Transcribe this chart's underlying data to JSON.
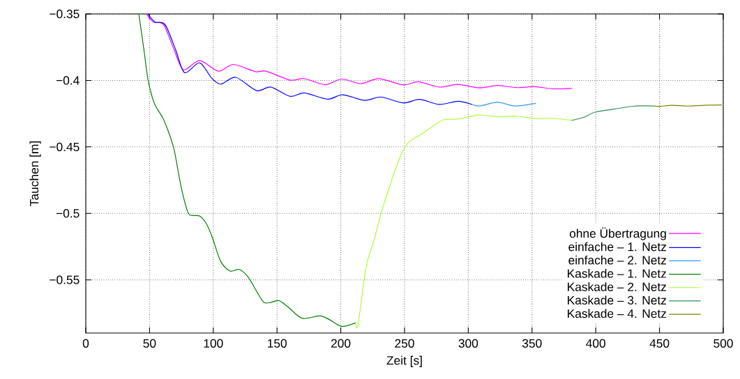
{
  "chart_data": {
    "type": "line",
    "xlabel": "Zeit [s]",
    "ylabel": "Tauchen [m]",
    "xlim": [
      0,
      500
    ],
    "ylim": [
      -0.59,
      -0.35
    ],
    "xticks": [
      0,
      50,
      100,
      150,
      200,
      250,
      300,
      350,
      400,
      450,
      500
    ],
    "yticks": [
      {
        "value": -0.55,
        "label": "−0.55"
      },
      {
        "value": -0.5,
        "label": "−0.5"
      },
      {
        "value": -0.45,
        "label": "−0.45"
      },
      {
        "value": -0.4,
        "label": "−0.4"
      },
      {
        "value": -0.35,
        "label": "−0.35"
      }
    ],
    "grid": true,
    "legend": "bottom right",
    "line_style": "solid",
    "marker": "none",
    "series": [
      {
        "name": "ohne Übertragung",
        "color": "#ff00ff",
        "x": [
          47.4,
          52.9,
          58.4,
          62,
          69.3,
          76.6,
          89.3,
          104,
          115.8,
          133,
          141.3,
          160.4,
          171.4,
          187.8,
          200.6,
          216,
          229.8,
          249,
          261,
          277.3,
          292,
          308.4,
          323,
          337.5,
          352,
          366.7,
          381.3
        ],
        "values": [
          -0.35,
          -0.356,
          -0.3565,
          -0.3595,
          -0.377,
          -0.392,
          -0.385,
          -0.393,
          -0.388,
          -0.3934,
          -0.393,
          -0.3998,
          -0.3986,
          -0.4033,
          -0.399,
          -0.4024,
          -0.3987,
          -0.4033,
          -0.401,
          -0.405,
          -0.403,
          -0.4056,
          -0.4038,
          -0.4054,
          -0.4047,
          -0.4064,
          -0.406
        ]
      },
      {
        "name": "einfache – 1. Netz",
        "color": "#0000ff",
        "x": [
          48.6,
          54.1,
          59.6,
          63.2,
          70.5,
          77.5,
          89.3,
          98.5,
          105.8,
          117.6,
          134,
          145,
          160.5,
          171.4,
          189.7,
          201.5,
          218.8,
          231.6,
          249,
          261.9,
          277.3,
          292,
          303
        ],
        "values": [
          -0.35,
          -0.356,
          -0.3565,
          -0.3595,
          -0.377,
          -0.3942,
          -0.3867,
          -0.398,
          -0.4028,
          -0.3977,
          -0.4077,
          -0.405,
          -0.412,
          -0.4094,
          -0.4141,
          -0.4108,
          -0.415,
          -0.4125,
          -0.4169,
          -0.4143,
          -0.4181,
          -0.4157,
          -0.4181
        ]
      },
      {
        "name": "einfache – 2. Netz",
        "color": "#3399ff",
        "x": [
          303,
          309.2,
          323,
          336.6,
          353
        ],
        "values": [
          -0.4181,
          -0.4192,
          -0.4164,
          -0.4192,
          -0.4173
        ]
      },
      {
        "name": "Kaskade – 1. Netz",
        "color": "#008000",
        "x": [
          41.6,
          45.6,
          48.9,
          53.8,
          60.2,
          64.7,
          69.3,
          74.8,
          80.2,
          83.9,
          89.3,
          94.8,
          99.4,
          105.8,
          113.1,
          120.4,
          127.6,
          138.6,
          144,
          151.4,
          158.7,
          169.7,
          183.4,
          190.7,
          200.8,
          211.7
        ],
        "values": [
          -0.35,
          -0.377,
          -0.4,
          -0.4173,
          -0.4278,
          -0.4382,
          -0.4522,
          -0.4801,
          -0.4994,
          -0.5016,
          -0.502,
          -0.5081,
          -0.5186,
          -0.5361,
          -0.5434,
          -0.5422,
          -0.5483,
          -0.5658,
          -0.5672,
          -0.5656,
          -0.5705,
          -0.5789,
          -0.5771,
          -0.5797,
          -0.585,
          -0.5823
        ]
      },
      {
        "name": "Kaskade – 2. Netz",
        "color": "#aaff33",
        "x": [
          211.7,
          213.5,
          219.9,
          226.3,
          231.8,
          240.9,
          248.2,
          253.7,
          262.7,
          271.9,
          281,
          292,
          308.4,
          323,
          337.5,
          352,
          366.7,
          381.3
        ],
        "values": [
          -0.5823,
          -0.584,
          -0.5404,
          -0.5195,
          -0.4994,
          -0.4723,
          -0.454,
          -0.4461,
          -0.4408,
          -0.4347,
          -0.4295,
          -0.4291,
          -0.426,
          -0.4274,
          -0.4269,
          -0.4286,
          -0.4286,
          -0.43
        ]
      },
      {
        "name": "Kaskade – 3. Netz",
        "color": "#2e8b57",
        "x": [
          381.3,
          390.4,
          399.5,
          414.2,
          430.5,
          445.1
        ],
        "values": [
          -0.43,
          -0.4278,
          -0.4239,
          -0.4216,
          -0.4193,
          -0.4192
        ]
      },
      {
        "name": "Kaskade – 4. Netz",
        "color": "#808000",
        "x": [
          445.1,
          450.6,
          459.7,
          472.5,
          485.2,
          498.9
        ],
        "values": [
          -0.4192,
          -0.4195,
          -0.4187,
          -0.4193,
          -0.4187,
          -0.4185
        ]
      }
    ]
  }
}
